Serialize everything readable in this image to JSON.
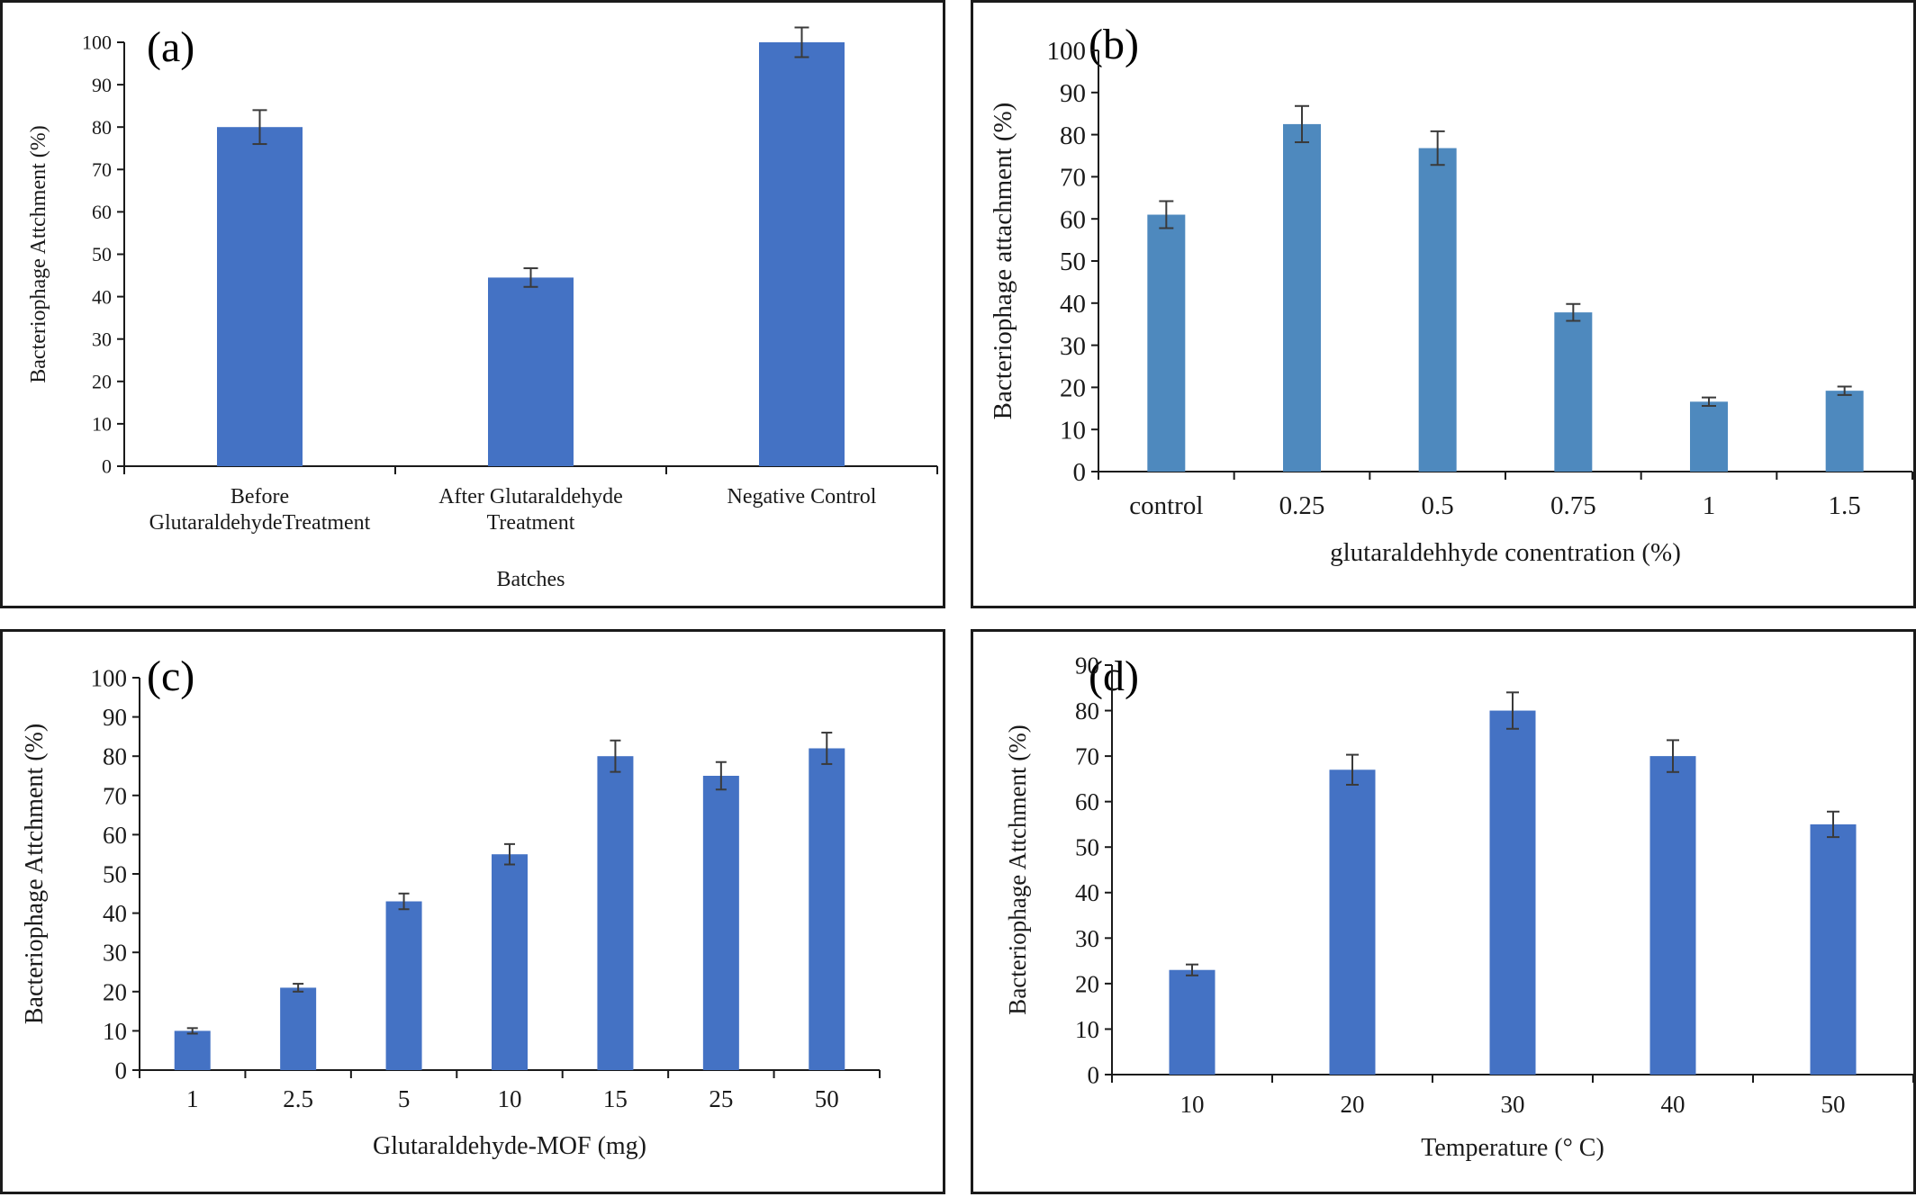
{
  "figure": {
    "panels": [
      "a",
      "b",
      "c",
      "d"
    ]
  },
  "chart_data": [
    {
      "type": "bar",
      "panel_label": "(a)",
      "categories": [
        "Before\nGlutaraldehydeTreatment",
        "After Glutaraldehyde\nTreatment",
        "Negative Control"
      ],
      "values": [
        80,
        44.5,
        100
      ],
      "errors": [
        4,
        2.2,
        3.5
      ],
      "xlabel": "Batches",
      "ylabel": "Bacteriophage Attchment (%)",
      "ylim": [
        0,
        100
      ],
      "ytick_step": 10,
      "bar_color": "#4472c4",
      "grid": false
    },
    {
      "type": "bar",
      "panel_label": "(b)",
      "categories": [
        "control",
        "0.25",
        "0.5",
        "0.75",
        "1",
        "1.5"
      ],
      "values": [
        61,
        82.5,
        76.8,
        37.8,
        16.6,
        19.2
      ],
      "errors": [
        3.2,
        4.3,
        4,
        2,
        1,
        1
      ],
      "xlabel": "glutaraldehhyde conentration (%)",
      "ylabel": "Bacteriophage  attachment (%)",
      "ylim": [
        0,
        100
      ],
      "ytick_step": 10,
      "bar_color": "#4e89be",
      "grid": false
    },
    {
      "type": "bar",
      "panel_label": "(c)",
      "categories": [
        "1",
        "2.5",
        "5",
        "10",
        "15",
        "25",
        "50"
      ],
      "values": [
        10,
        21,
        43,
        55,
        80,
        75,
        82
      ],
      "errors": [
        0.7,
        1,
        2,
        2.6,
        4,
        3.5,
        4
      ],
      "xlabel": "Glutaraldehyde-MOF (mg)",
      "ylabel": "Bacteriophage Attchment (%)",
      "ylim": [
        0,
        100
      ],
      "ytick_step": 10,
      "bar_color": "#4472c4",
      "grid": false
    },
    {
      "type": "bar",
      "panel_label": "(d)",
      "categories": [
        "10",
        "20",
        "30",
        "40",
        "50"
      ],
      "values": [
        23,
        67,
        80,
        70,
        55
      ],
      "errors": [
        1.2,
        3.3,
        4,
        3.5,
        2.8
      ],
      "xlabel": "Temperature (° C)",
      "ylabel": "Bacteriophage Attchment (%)",
      "ylim": [
        0,
        90
      ],
      "ytick_step": 10,
      "bar_color": "#4472c4",
      "grid": false
    }
  ]
}
